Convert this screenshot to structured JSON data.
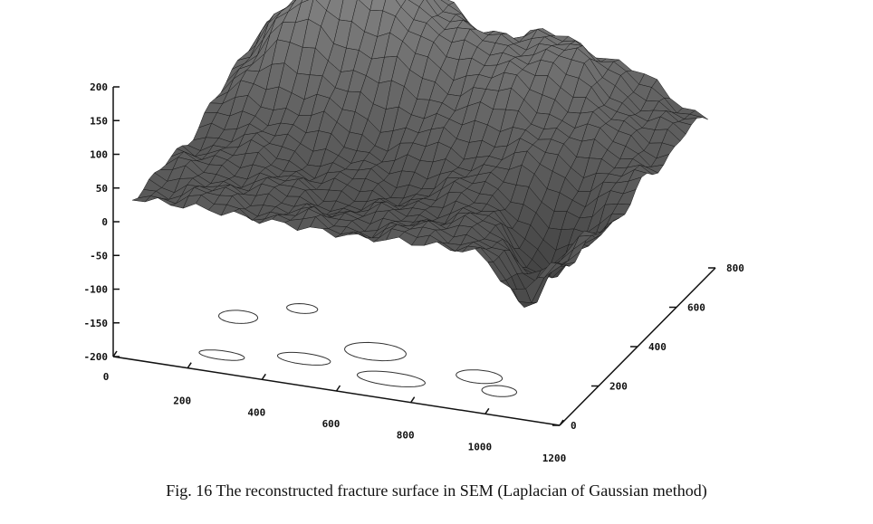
{
  "chart_data": {
    "type": "surface",
    "axes": {
      "z": {
        "ticks": [
          "200",
          "150",
          "100",
          "50",
          "0",
          "-50",
          "-100",
          "-150",
          "-200"
        ]
      },
      "x": {
        "ticks": [
          "0",
          "200",
          "400",
          "600",
          "800",
          "1000",
          "1200"
        ]
      },
      "y": {
        "ticks": [
          "0",
          "200",
          "400",
          "600",
          "800"
        ]
      }
    },
    "xlim": [
      0,
      1200
    ],
    "ylim": [
      0,
      800
    ],
    "zlim": [
      -200,
      200
    ],
    "contour_projection_on_floor": true,
    "surface_style": "dark gray mesh",
    "surface_color": "#5a5a5a",
    "mesh_color": "#1a1a1a"
  },
  "caption": "Fig. 16 The reconstructed fracture surface in SEM  (Laplacian of Gaussian method)"
}
